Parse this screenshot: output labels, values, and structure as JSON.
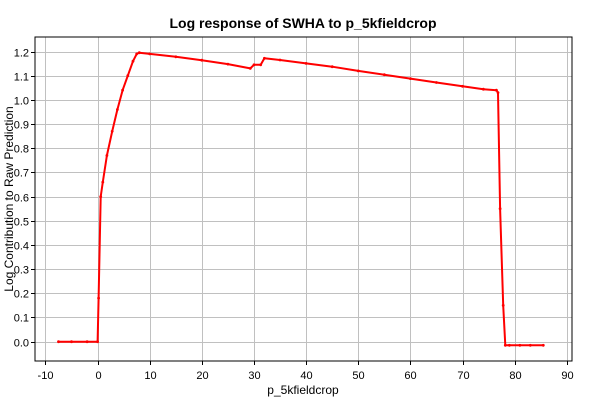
{
  "chart_data": {
    "type": "line",
    "title": "Log response of SWHA to p_5kfieldcrop",
    "xlabel": "p_5kfieldcrop",
    "ylabel": "Log Contribution to Raw Prediction",
    "xlim": [
      -12,
      91
    ],
    "ylim": [
      -0.08,
      1.26
    ],
    "xticks": [
      -10,
      0,
      10,
      20,
      30,
      40,
      50,
      60,
      70,
      80,
      90
    ],
    "xtick_labels": [
      "-10",
      "0",
      "10",
      "20",
      "30",
      "40",
      "50",
      "60",
      "70",
      "80",
      "90"
    ],
    "yticks": [
      0.0,
      0.1,
      0.2,
      0.3,
      0.4,
      0.5,
      0.6,
      0.7,
      0.8,
      0.9,
      1.0,
      1.1,
      1.2
    ],
    "ytick_labels": [
      "0.0",
      "0.1",
      "0.2",
      "0.3",
      "0.4",
      "0.5",
      "0.6",
      "0.7",
      "0.8",
      "0.9",
      "1.0",
      "1.1",
      "1.2"
    ],
    "grid": true,
    "series": [
      {
        "color": "#ff0000",
        "x": [
          -7.5,
          -5,
          -2,
          0,
          0.2,
          0.6,
          1,
          1.8,
          2.8,
          3.8,
          4.8,
          5.8,
          6.8,
          7.5,
          8,
          10,
          15,
          20,
          25,
          29.3,
          30,
          31.3,
          32,
          35,
          40,
          45,
          50,
          55,
          60,
          65,
          70,
          74,
          76.5,
          76.8,
          77.2,
          77.8,
          78.2,
          79,
          81,
          83,
          85.5
        ],
        "y": [
          0.0,
          0.0,
          0.0,
          0.0,
          0.18,
          0.6,
          0.66,
          0.77,
          0.87,
          0.96,
          1.04,
          1.1,
          1.16,
          1.19,
          1.195,
          1.19,
          1.178,
          1.164,
          1.148,
          1.13,
          1.145,
          1.145,
          1.172,
          1.165,
          1.151,
          1.137,
          1.12,
          1.104,
          1.088,
          1.072,
          1.056,
          1.044,
          1.04,
          1.03,
          0.55,
          0.15,
          -0.015,
          -0.015,
          -0.015,
          -0.015,
          -0.015
        ]
      }
    ]
  }
}
